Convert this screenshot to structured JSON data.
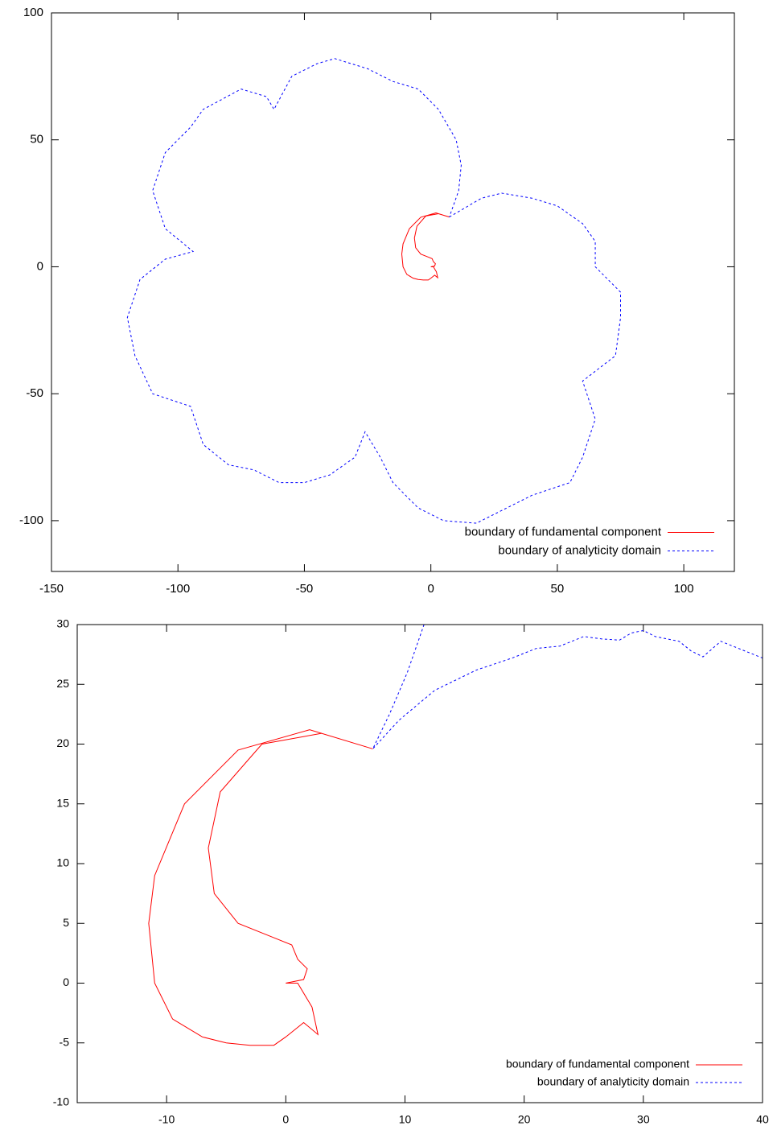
{
  "chart_data": [
    {
      "type": "line",
      "xlim": [
        -150,
        120
      ],
      "ylim": [
        -120,
        100
      ],
      "xticks": [
        -150,
        -100,
        -50,
        0,
        50,
        100
      ],
      "yticks": [
        -100,
        -50,
        0,
        50,
        100
      ],
      "legend": "bottom right",
      "series": [
        {
          "name": "boundary of fundamental component",
          "color": "#ff0000",
          "dash": false,
          "x": [
            7.3,
            2,
            -4,
            -8.5,
            -11,
            -11.5,
            -11,
            -9.5,
            -7,
            -5,
            -3,
            -1,
            0,
            1.5,
            2.7,
            2.2,
            1,
            0,
            1.5,
            1.8,
            1,
            0.5,
            -1,
            -4,
            -6,
            -6.5,
            -5.5,
            -2,
            3,
            7.3
          ],
          "values": [
            19.6,
            21.2,
            19.5,
            15,
            9,
            5,
            0,
            -3,
            -4.5,
            -5,
            -5.2,
            -5.2,
            -4.5,
            -3.3,
            -4.3,
            -2,
            0,
            0,
            0.3,
            1.2,
            2,
            3.2,
            3.8,
            5,
            7.5,
            11.3,
            16,
            20,
            20.9,
            19.6
          ]
        },
        {
          "name": "boundary of analyticity domain",
          "color": "#0000ff",
          "dash": true,
          "x": [
            7.3,
            20,
            28,
            40,
            50,
            60,
            65,
            65,
            75,
            75,
            73,
            60,
            65,
            60,
            55,
            40,
            30,
            18,
            5,
            -5,
            -15,
            -20,
            -26,
            -30,
            -40,
            -50,
            -60,
            -70,
            -80,
            -90,
            -95,
            -110,
            -117,
            -120,
            -115,
            -105,
            -94,
            -105,
            -110,
            -105,
            -95,
            -90,
            -75,
            -65,
            -62,
            -55,
            -45,
            -38,
            -25,
            -15,
            -5,
            3,
            10,
            12,
            11,
            7.3
          ],
          "values": [
            19.6,
            27,
            29,
            27,
            24,
            17,
            10,
            0,
            -10,
            -20,
            -35,
            -45,
            -60,
            -75,
            -85,
            -90,
            -95,
            -101,
            -100,
            -95,
            -85,
            -75,
            -65,
            -75,
            -82,
            -85,
            -85,
            -80,
            -78,
            -70,
            -55,
            -50,
            -35,
            -20,
            -5,
            3,
            6,
            15,
            30,
            45,
            55,
            62,
            70,
            67,
            62,
            75,
            80,
            82,
            78,
            73,
            70,
            62,
            50,
            40,
            30,
            19.6
          ]
        }
      ]
    },
    {
      "type": "line",
      "xlim": [
        -17.5,
        40
      ],
      "ylim": [
        -10,
        30
      ],
      "xticks": [
        -10,
        0,
        10,
        20,
        30,
        40
      ],
      "yticks": [
        -10,
        -5,
        0,
        5,
        10,
        15,
        20,
        25,
        30
      ],
      "legend": "bottom right",
      "series": [
        {
          "name": "boundary of fundamental component",
          "color": "#ff0000",
          "dash": false,
          "x": [
            7.3,
            2,
            -4,
            -8.5,
            -11,
            -11.5,
            -11,
            -9.5,
            -7,
            -5,
            -3,
            -1,
            0,
            1.5,
            2.7,
            2.2,
            1,
            0,
            1.5,
            1.8,
            1,
            0.5,
            -1,
            -4,
            -6,
            -6.5,
            -5.5,
            -2,
            3,
            7.3
          ],
          "values": [
            19.6,
            21.2,
            19.5,
            15,
            9,
            5,
            0,
            -3,
            -4.5,
            -5,
            -5.2,
            -5.2,
            -4.5,
            -3.3,
            -4.3,
            -2,
            0,
            0,
            0.3,
            1.2,
            2,
            3.2,
            3.8,
            5,
            7.5,
            11.3,
            16,
            20,
            20.9,
            19.6
          ]
        },
        {
          "name": "boundary of analyticity domain",
          "color": "#0000ff",
          "dash": true,
          "x": [
            11.6,
            10.2,
            8.7,
            7.3,
            9.5,
            12.5,
            16,
            19,
            21,
            23,
            25,
            26.5,
            28,
            29,
            30,
            31,
            33,
            34,
            35,
            36.5,
            38,
            40
          ],
          "values": [
            30,
            26,
            22.5,
            19.6,
            22,
            24.5,
            26.2,
            27.2,
            28,
            28.2,
            29,
            28.8,
            28.7,
            29.3,
            29.5,
            29,
            28.6,
            27.8,
            27.3,
            28.6,
            28,
            27.2
          ]
        }
      ]
    }
  ]
}
